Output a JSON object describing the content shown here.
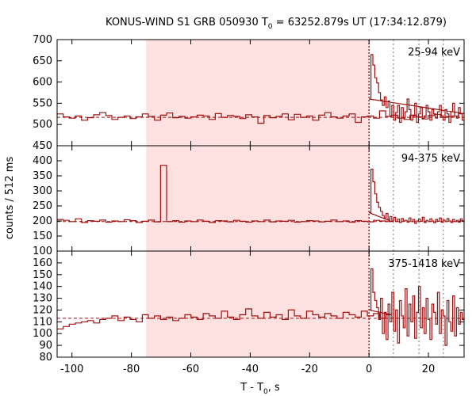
{
  "chart_data": {
    "type": "line",
    "title": {
      "main": "KONUS-WIND S1 GRB 050930 T",
      "sub": "0",
      "rest": " = 63252.879s UT (17:34:12.879)"
    },
    "xlabel": {
      "main": "T - T",
      "sub": "0",
      "rest": ", s"
    },
    "ylabel": "counts / 512 ms",
    "xlim": [
      -105,
      32
    ],
    "x_ticks": [
      -100,
      -80,
      -60,
      -40,
      -20,
      0,
      20
    ],
    "shaded_interval": [
      -75,
      0
    ],
    "shade_color": "#fde0e0",
    "line_color": "#a01010",
    "vertical_markers": {
      "dotted_red": [
        0
      ],
      "dotted_gray": [
        8.2,
        16.8,
        25
      ]
    },
    "panels": [
      {
        "label": "25-94 keV",
        "ylim": [
          450,
          700
        ],
        "y_ticks": [
          450,
          500,
          550,
          600,
          650,
          700
        ],
        "background": 517,
        "bin_width": 2.048,
        "x_start": -105,
        "values": [
          525,
          518,
          515,
          520,
          510,
          516,
          523,
          528,
          521,
          512,
          517,
          520,
          514,
          518,
          525,
          519,
          510,
          522,
          527,
          516,
          519,
          515,
          518,
          522,
          520,
          512,
          526,
          517,
          521,
          519,
          514,
          523,
          518,
          503,
          521,
          516,
          519,
          525,
          511,
          524,
          517,
          520,
          510,
          522,
          528,
          518,
          515,
          520,
          525,
          505,
          518,
          520,
          515,
          532,
          519,
          522,
          515,
          512,
          522,
          518,
          513,
          521,
          524,
          517,
          519,
          520,
          526,
          515,
          520,
          540
        ],
        "burst_values": [
          560,
          665,
          640,
          610,
          598,
          575,
          558,
          545,
          565,
          540,
          555,
          520,
          545,
          510,
          528,
          545,
          505,
          540,
          515,
          530,
          560,
          535,
          510,
          520,
          550,
          505,
          525,
          540,
          515,
          520,
          545,
          530,
          510,
          535,
          525,
          515,
          530,
          545,
          520,
          510,
          535,
          525,
          505,
          530,
          550,
          520,
          515,
          540,
          525,
          510
        ],
        "burst_bin_width": 0.64
      },
      {
        "label": "94-375 keV",
        "ylim": [
          100,
          450
        ],
        "y_ticks": [
          100,
          150,
          200,
          250,
          300,
          350,
          400
        ],
        "background": 198,
        "bin_width": 2.048,
        "x_start": -105,
        "values": [
          205,
          202,
          198,
          207,
          195,
          201,
          199,
          203,
          196,
          200,
          198,
          204,
          201,
          195,
          199,
          203,
          197,
          385,
          198,
          201,
          196,
          200,
          198,
          203,
          199,
          195,
          201,
          200,
          197,
          202,
          199,
          196,
          200,
          198,
          203,
          197,
          200,
          199,
          202,
          196,
          198,
          201,
          200,
          197,
          199,
          203,
          198,
          200,
          196,
          201,
          199,
          197,
          202,
          200,
          198,
          205
        ],
        "burst_values": [
          228,
          372,
          330,
          290,
          262,
          245,
          232,
          218,
          210,
          225,
          205,
          215,
          200,
          212,
          198,
          206,
          195,
          208,
          200,
          202,
          196,
          210,
          198,
          205,
          192,
          200,
          206,
          199,
          212,
          195,
          202,
          198,
          207,
          200,
          194,
          205,
          199,
          210,
          196,
          203,
          198,
          208,
          200,
          195,
          205,
          198,
          202,
          196,
          207,
          199
        ],
        "burst_bin_width": 0.64
      },
      {
        "label": "375-1418 keV",
        "ylim": [
          80,
          170
        ],
        "y_ticks": [
          80,
          90,
          100,
          110,
          120,
          130,
          140,
          150,
          160
        ],
        "background": 113,
        "bin_width": 2.048,
        "x_start": -105,
        "values": [
          104,
          106,
          108,
          109,
          110,
          111,
          109,
          112,
          113,
          115,
          111,
          114,
          112,
          110,
          116,
          113,
          115,
          112,
          114,
          111,
          113,
          116,
          114,
          112,
          117,
          115,
          113,
          119,
          114,
          112,
          116,
          121,
          115,
          113,
          118,
          114,
          116,
          112,
          120,
          115,
          113,
          119,
          116,
          114,
          117,
          115,
          113,
          118,
          116,
          114,
          119,
          115,
          117,
          113,
          116,
          115
        ],
        "burst_values": [
          120,
          155,
          135,
          128,
          122,
          112,
          130,
          100,
          118,
          95,
          125,
          110,
          135,
          102,
          120,
          92,
          128,
          115,
          105,
          138,
          98,
          125,
          110,
          132,
          96,
          118,
          140,
          105,
          122,
          100,
          130,
          112,
          95,
          125,
          118,
          108,
          135,
          100,
          120,
          115,
          90,
          128,
          110,
          102,
          132,
          98,
          122,
          108,
          118,
          112
        ],
        "burst_bin_width": 0.64
      }
    ]
  }
}
